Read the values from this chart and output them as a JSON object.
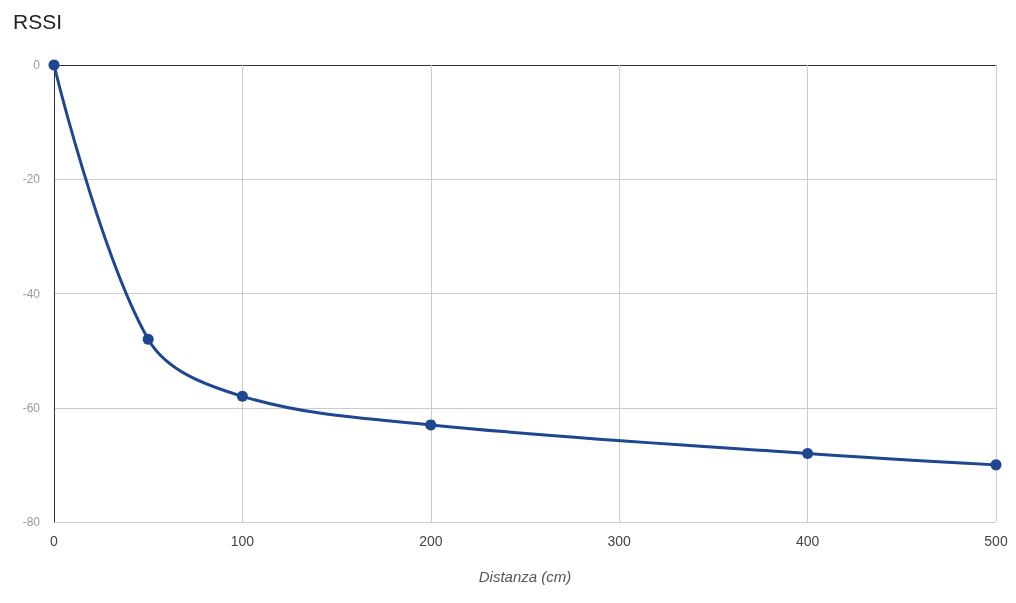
{
  "chart_data": {
    "type": "line",
    "title": "RSSI",
    "xlabel": "Distanza (cm)",
    "x": [
      0,
      50,
      100,
      200,
      400,
      500
    ],
    "series": [
      {
        "color": "#1f4690",
        "values": [
          0,
          -48,
          -58,
          -63,
          -68,
          -70
        ]
      }
    ],
    "xlim": [
      0,
      500
    ],
    "xticks": [
      0,
      100,
      200,
      300,
      400,
      500
    ],
    "ylim": [
      -80,
      0
    ],
    "yticks": [
      -80,
      -60,
      -40,
      -20,
      0
    ],
    "grid": true,
    "marker": "circle",
    "line_style": "solid"
  }
}
